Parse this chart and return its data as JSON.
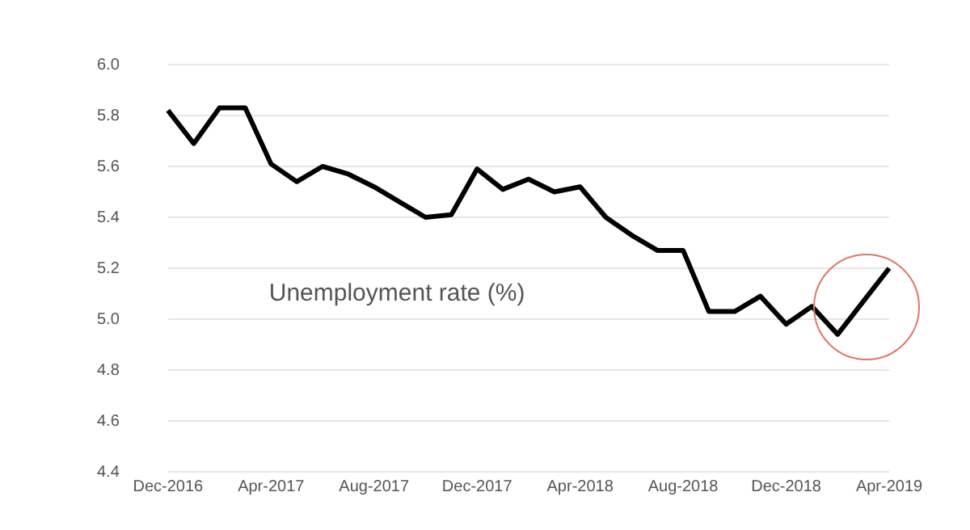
{
  "chart_data": {
    "type": "line",
    "categories": [
      "Dec-2016",
      null,
      null,
      null,
      "Apr-2017",
      null,
      null,
      null,
      "Aug-2017",
      null,
      null,
      null,
      "Dec-2017",
      null,
      null,
      null,
      "Apr-2018",
      null,
      null,
      null,
      "Aug-2018",
      null,
      null,
      null,
      "Dec-2018",
      null,
      null,
      null,
      "Apr-2019"
    ],
    "series": [
      {
        "color": "#000000",
        "values": [
          5.82,
          5.69,
          5.83,
          5.83,
          5.61,
          5.54,
          5.6,
          5.57,
          5.52,
          5.46,
          5.4,
          5.41,
          5.59,
          5.51,
          5.55,
          5.5,
          5.52,
          5.4,
          5.33,
          5.27,
          5.27,
          5.03,
          5.03,
          5.09,
          4.98,
          5.05,
          4.94,
          5.07,
          5.2
        ]
      }
    ],
    "ylim": [
      4.4,
      6.0
    ],
    "yticks": [
      {
        "value": 4.4,
        "label": "4.4"
      },
      {
        "value": 4.6,
        "label": "4.6"
      },
      {
        "value": 4.8,
        "label": "4.8"
      },
      {
        "value": 5.0,
        "label": "5.0"
      },
      {
        "value": 5.2,
        "label": "5.2"
      },
      {
        "value": 5.4,
        "label": "5.4"
      },
      {
        "value": 5.6,
        "label": "5.6"
      },
      {
        "value": 5.8,
        "label": "5.8"
      },
      {
        "value": 6.0,
        "label": "6.0"
      }
    ],
    "grid": "y",
    "legend": false,
    "marker": "none",
    "line_style": "solid",
    "annotations": [
      "Unemployment rate (%)"
    ]
  }
}
